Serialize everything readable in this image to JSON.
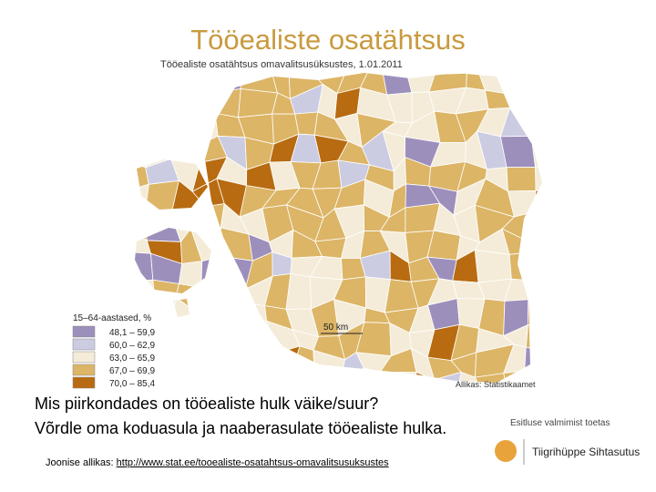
{
  "header": {
    "title": "Tööealiste osatähtsus"
  },
  "map": {
    "subtitle": "Tööealiste osatähtsus omavalitsusüksustes, 1.01.2011",
    "legend": {
      "title": "15–64-aastased, %",
      "items": [
        {
          "label": "48,1 – 59,9",
          "color": "#9d8fbb"
        },
        {
          "label": "60,0 – 62,9",
          "color": "#cbcbe2"
        },
        {
          "label": "63,0 – 65,9",
          "color": "#f4ecd8"
        },
        {
          "label": "67,0 – 69,9",
          "color": "#dcb566"
        },
        {
          "label": "70,0 – 85,4",
          "color": "#b86b10"
        }
      ]
    },
    "scale": "50 km",
    "source": "Allikas: Statistikaamet"
  },
  "questions": [
    "Mis piirkondades on tööealiste hulk väike/suur?",
    "Võrdle oma koduasula ja naaberasulate tööealiste hulka."
  ],
  "footer": {
    "label": "Joonise allikas:",
    "link": "http://www.stat.ee/tooealiste-osatahtsus-omavalitsusuksustes"
  },
  "logo": {
    "caption": "Esitluse valmimist toetas",
    "name": "Tiigrihüppe Sihtasutus"
  }
}
